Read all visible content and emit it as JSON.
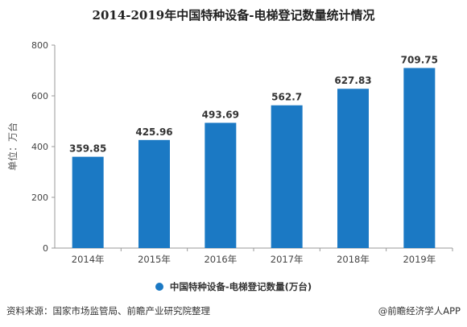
{
  "chart_data": {
    "type": "bar",
    "title": "2014-2019年中国特种设备-电梯登记数量统计情况",
    "ylabel": "单位：万台",
    "xlabel": "",
    "categories": [
      "2014年",
      "2015年",
      "2016年",
      "2017年",
      "2018年",
      "2019年"
    ],
    "series": [
      {
        "name": "中国特种设备-电梯登记数量(万台)",
        "values": [
          359.85,
          425.96,
          493.69,
          562.7,
          627.83,
          709.75
        ]
      }
    ],
    "data_labels": [
      "359.85",
      "425.96",
      "493.69",
      "562.7",
      "627.83",
      "709.75"
    ],
    "ylim": [
      0,
      800
    ],
    "yticks": [
      0,
      200,
      400,
      600,
      800
    ],
    "grid": false,
    "legend": "bottom-center",
    "bar_color": "#1b79c4"
  },
  "footer": {
    "source": "资料来源：国家市场监管局、前瞻产业研究院整理",
    "brand": "@前瞻经济学人APP"
  }
}
